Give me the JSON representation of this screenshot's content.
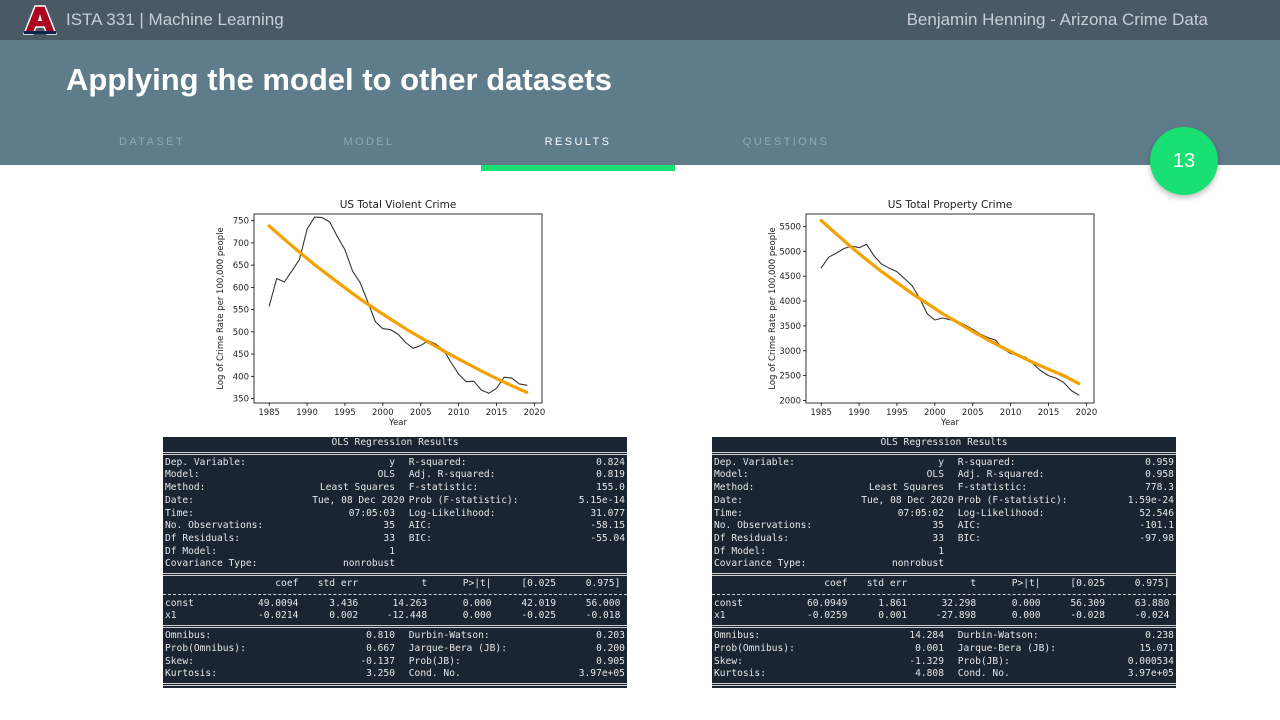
{
  "header": {
    "course": "ISTA 331 | Machine Learning",
    "author": "Benjamin Henning - Arizona Crime Data",
    "title": "Applying the model to other datasets",
    "slide_number": "13"
  },
  "tabs": [
    {
      "label": "DATASET",
      "active": false
    },
    {
      "label": "MODEL",
      "active": false
    },
    {
      "label": "RESULTS",
      "active": true
    },
    {
      "label": "QUESTIONS",
      "active": false
    }
  ],
  "colors": {
    "topbar": "#4a5a65",
    "band": "#5f7c8a",
    "accent": "#19e073",
    "fit": "#f5a100",
    "logo": "#ab0520",
    "logo_outline": "#0c234b"
  },
  "chart_data": [
    {
      "type": "line",
      "title": "US Total Violent Crime",
      "xlabel": "Year",
      "ylabel": "Log of Crime Rate per 100,000 people",
      "xlim": [
        1983,
        2021
      ],
      "ylim": [
        340,
        765
      ],
      "xticks": [
        1985,
        1990,
        1995,
        2000,
        2005,
        2010,
        2015,
        2020
      ],
      "yticks": [
        350,
        400,
        450,
        500,
        550,
        600,
        650,
        700,
        750
      ],
      "grid": false,
      "series": [
        {
          "x": [
            1985,
            1986,
            1987,
            1988,
            1989,
            1990,
            1991,
            1992,
            1993,
            1994,
            1995,
            1996,
            1997,
            1998,
            1999,
            2000,
            2001,
            2002,
            2003,
            2004,
            2005,
            2006,
            2007,
            2008,
            2009,
            2010,
            2011,
            2012,
            2013,
            2014,
            2015,
            2016,
            2017,
            2018,
            2019
          ],
          "y": [
            558,
            620,
            612,
            637,
            663,
            731,
            758,
            757,
            747,
            714,
            685,
            637,
            611,
            568,
            523,
            507,
            505,
            495,
            476,
            463,
            469,
            480,
            472,
            459,
            431,
            405,
            388,
            389,
            369,
            362,
            373,
            398,
            396,
            383,
            380
          ],
          "color": "#333333"
        },
        {
          "x": [
            1985,
            1987,
            1989,
            1991,
            1993,
            1995,
            1997,
            1999,
            2001,
            2003,
            2005,
            2007,
            2009,
            2011,
            2013,
            2015,
            2017,
            2019
          ],
          "y": [
            738,
            708,
            679,
            651,
            625,
            599,
            574,
            551,
            529,
            507,
            487,
            467,
            448,
            430,
            412,
            395,
            379,
            364
          ],
          "color": "#f5a100"
        }
      ]
    },
    {
      "type": "line",
      "title": "US Total Property Crime",
      "xlabel": "Year",
      "ylabel": "Log of Crime Rate per 100,000 people",
      "xlim": [
        1983,
        2021
      ],
      "ylim": [
        1950,
        5750
      ],
      "xticks": [
        1985,
        1990,
        1995,
        2000,
        2005,
        2010,
        2015,
        2020
      ],
      "yticks": [
        2000,
        2500,
        3000,
        3500,
        4000,
        4500,
        5000,
        5500
      ],
      "grid": false,
      "series": [
        {
          "x": [
            1985,
            1986,
            1987,
            1988,
            1989,
            1990,
            1991,
            1992,
            1993,
            1994,
            1995,
            1996,
            1997,
            1998,
            1999,
            2000,
            2001,
            2002,
            2003,
            2004,
            2005,
            2006,
            2007,
            2008,
            2009,
            2010,
            2011,
            2012,
            2013,
            2014,
            2015,
            2016,
            2017,
            2018,
            2019
          ],
          "y": [
            4666,
            4881,
            4963,
            5054,
            5107,
            5073,
            5140,
            4903,
            4740,
            4660,
            4591,
            4451,
            4311,
            4053,
            3744,
            3618,
            3659,
            3624,
            3591,
            3517,
            3432,
            3335,
            3264,
            3214,
            3041,
            2946,
            2909,
            2868,
            2733,
            2596,
            2500,
            2451,
            2362,
            2200,
            2110
          ],
          "color": "#333333"
        },
        {
          "x": [
            1985,
            1987,
            1989,
            1991,
            1993,
            1995,
            1997,
            1999,
            2001,
            2003,
            2005,
            2007,
            2009,
            2011,
            2013,
            2015,
            2017,
            2019
          ],
          "y": [
            5620,
            5350,
            5080,
            4830,
            4590,
            4370,
            4150,
            3950,
            3750,
            3570,
            3390,
            3220,
            3060,
            2910,
            2760,
            2630,
            2500,
            2340
          ],
          "color": "#f5a100"
        }
      ]
    }
  ],
  "ols_left": {
    "title": "OLS Regression Results",
    "top": [
      [
        "Dep. Variable:",
        "y",
        "R-squared:",
        "0.824"
      ],
      [
        "Model:",
        "OLS",
        "Adj. R-squared:",
        "0.819"
      ],
      [
        "Method:",
        "Least Squares",
        "F-statistic:",
        "155.0"
      ],
      [
        "Date:",
        "Tue, 08 Dec 2020",
        "Prob (F-statistic):",
        "5.15e-14"
      ],
      [
        "Time:",
        "07:05:03",
        "Log-Likelihood:",
        "31.077"
      ],
      [
        "No. Observations:",
        "35",
        "AIC:",
        "-58.15"
      ],
      [
        "Df Residuals:",
        "33",
        "BIC:",
        "-55.04"
      ],
      [
        "Df Model:",
        "1",
        "",
        ""
      ],
      [
        "Covariance Type:",
        "nonrobust",
        "",
        ""
      ]
    ],
    "coef_header": [
      "",
      "coef",
      "std err",
      "t",
      "P>|t|",
      "[0.025",
      "0.975]"
    ],
    "coef_rows": [
      [
        "const",
        "49.0094",
        "3.436",
        "14.263",
        "0.000",
        "42.019",
        "56.000"
      ],
      [
        "x1",
        "-0.0214",
        "0.002",
        "-12.448",
        "0.000",
        "-0.025",
        "-0.018"
      ]
    ],
    "bottom": [
      [
        "Omnibus:",
        "0.810",
        "Durbin-Watson:",
        "0.203"
      ],
      [
        "Prob(Omnibus):",
        "0.667",
        "Jarque-Bera (JB):",
        "0.200"
      ],
      [
        "Skew:",
        "-0.137",
        "Prob(JB):",
        "0.905"
      ],
      [
        "Kurtosis:",
        "3.250",
        "Cond. No.",
        "3.97e+05"
      ]
    ]
  },
  "ols_right": {
    "title": "OLS Regression Results",
    "top": [
      [
        "Dep. Variable:",
        "y",
        "R-squared:",
        "0.959"
      ],
      [
        "Model:",
        "OLS",
        "Adj. R-squared:",
        "0.958"
      ],
      [
        "Method:",
        "Least Squares",
        "F-statistic:",
        "778.3"
      ],
      [
        "Date:",
        "Tue, 08 Dec 2020",
        "Prob (F-statistic):",
        "1.59e-24"
      ],
      [
        "Time:",
        "07:05:02",
        "Log-Likelihood:",
        "52.546"
      ],
      [
        "No. Observations:",
        "35",
        "AIC:",
        "-101.1"
      ],
      [
        "Df Residuals:",
        "33",
        "BIC:",
        "-97.98"
      ],
      [
        "Df Model:",
        "1",
        "",
        ""
      ],
      [
        "Covariance Type:",
        "nonrobust",
        "",
        ""
      ]
    ],
    "coef_header": [
      "",
      "coef",
      "std err",
      "t",
      "P>|t|",
      "[0.025",
      "0.975]"
    ],
    "coef_rows": [
      [
        "const",
        "60.0949",
        "1.861",
        "32.298",
        "0.000",
        "56.309",
        "63.880"
      ],
      [
        "x1",
        "-0.0259",
        "0.001",
        "-27.898",
        "0.000",
        "-0.028",
        "-0.024"
      ]
    ],
    "bottom": [
      [
        "Omnibus:",
        "14.284",
        "Durbin-Watson:",
        "0.238"
      ],
      [
        "Prob(Omnibus):",
        "0.001",
        "Jarque-Bera (JB):",
        "15.071"
      ],
      [
        "Skew:",
        "-1.329",
        "Prob(JB):",
        "0.000534"
      ],
      [
        "Kurtosis:",
        "4.808",
        "Cond. No.",
        "3.97e+05"
      ]
    ]
  }
}
